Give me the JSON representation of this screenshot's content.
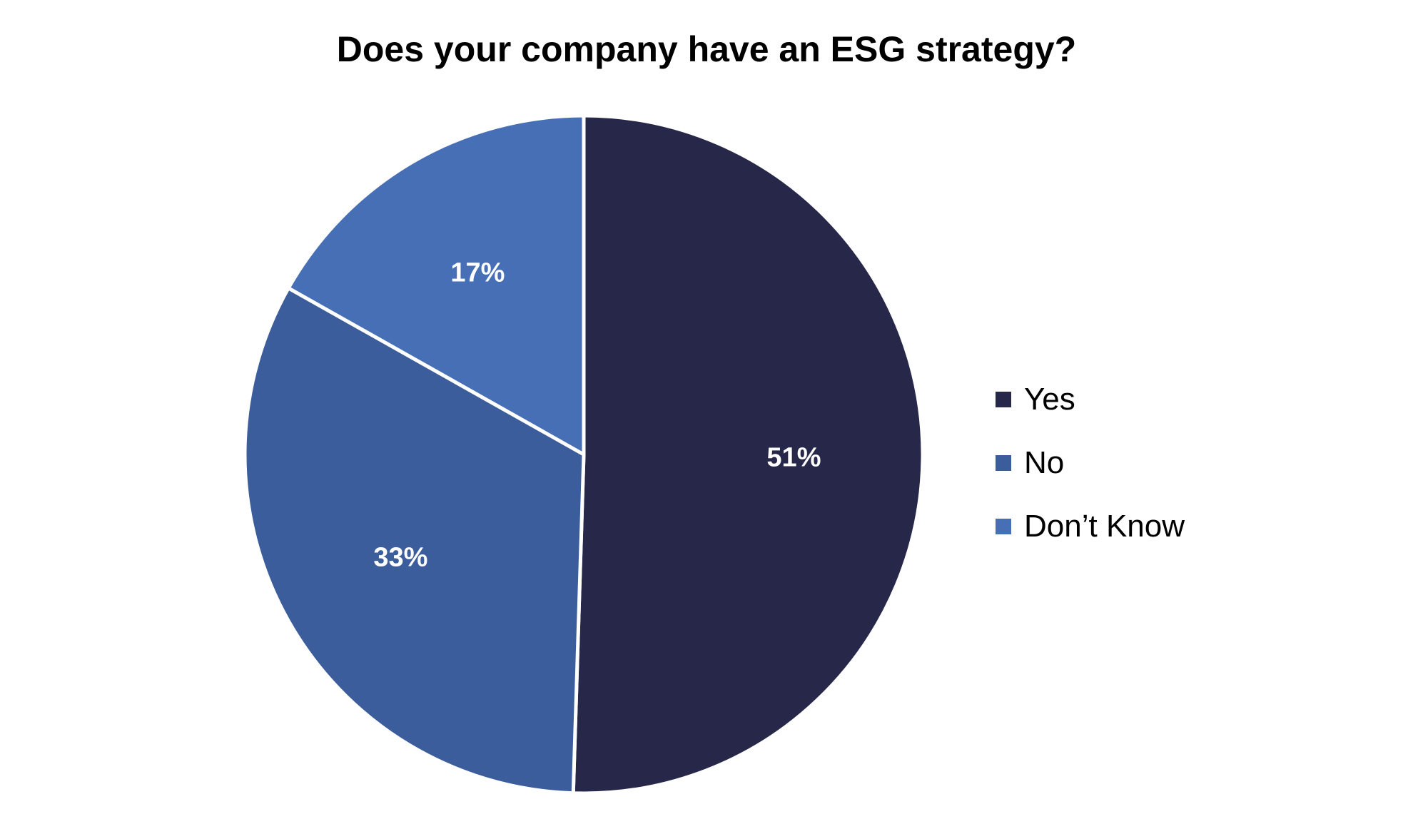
{
  "chart_data": {
    "type": "pie",
    "title": "Does your company have an ESG strategy?",
    "categories": [
      "Yes",
      "No",
      "Don’t Know"
    ],
    "values": [
      51,
      33,
      17
    ],
    "data_labels": [
      "51%",
      "33%",
      "17%"
    ],
    "colors": [
      "#27274a",
      "#3b5d9c",
      "#466fb5"
    ],
    "legend_position": "right",
    "start_angle": "12 o'clock",
    "direction": "clockwise"
  }
}
